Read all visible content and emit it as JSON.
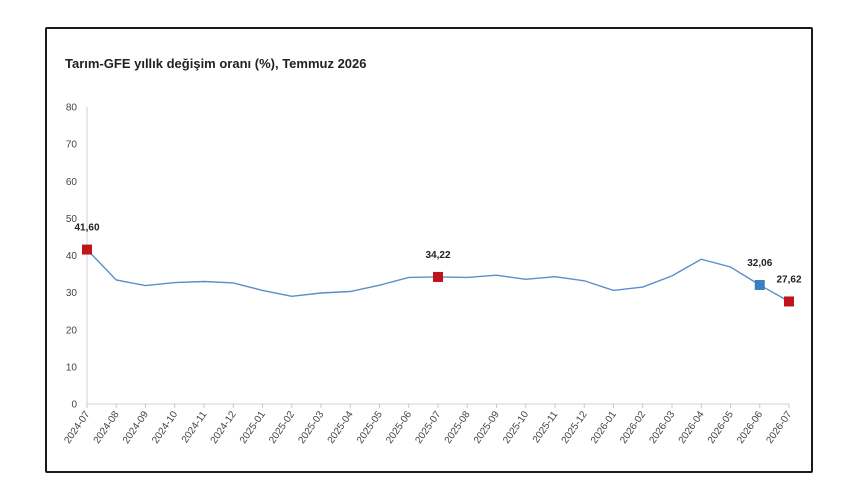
{
  "chart_data": {
    "type": "line",
    "title": "Tarım-GFE yıllık değişim oranı (%), Temmuz 2026",
    "xlabel": "",
    "ylabel": "",
    "ylim": [
      0,
      80
    ],
    "yticks": [
      "0",
      "10",
      "20",
      "30",
      "40",
      "50",
      "60",
      "70",
      "80"
    ],
    "categories": [
      "2024-07",
      "2024-08",
      "2024-09",
      "2024-10",
      "2024-11",
      "2024-12",
      "2025-01",
      "2025-02",
      "2025-03",
      "2025-04",
      "2025-05",
      "2025-06",
      "2025-07",
      "2025-08",
      "2025-09",
      "2025-10",
      "2025-11",
      "2025-12",
      "2026-01",
      "2026-02",
      "2026-03",
      "2026-04",
      "2026-05",
      "2026-06",
      "2026-07"
    ],
    "series": [
      {
        "values": [
          41.6,
          33.4,
          31.9,
          32.7,
          33.0,
          32.6,
          30.6,
          29.0,
          29.9,
          30.3,
          32.0,
          34.1,
          34.22,
          34.1,
          34.7,
          33.6,
          34.3,
          33.2,
          30.6,
          31.5,
          34.5,
          39.0,
          36.9,
          32.06,
          27.62
        ],
        "color": "#5b8ec9"
      }
    ],
    "highlights": [
      {
        "category": "2024-07",
        "value": 41.6,
        "label": "41,60",
        "color": "#c0141b"
      },
      {
        "category": "2025-07",
        "value": 34.22,
        "label": "34,22",
        "color": "#c0141b"
      },
      {
        "category": "2026-06",
        "value": 32.06,
        "label": "32,06",
        "color": "#3a7fc1"
      },
      {
        "category": "2026-07",
        "value": 27.62,
        "label": "27,62",
        "color": "#c0141b"
      }
    ],
    "grid": false,
    "legend": "none"
  }
}
